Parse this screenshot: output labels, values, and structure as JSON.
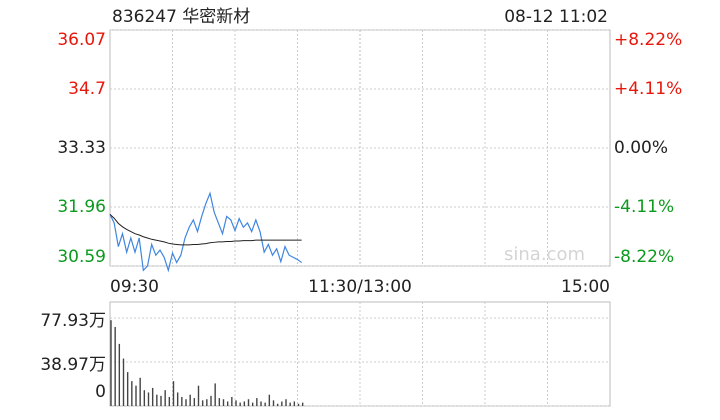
{
  "chart_data": [
    {
      "type": "line",
      "title": "836247 华密新材",
      "timestamp": "08-12 11:02",
      "watermark": "sina.com",
      "up_color": "#e8170c",
      "down_color": "#0b9a1e",
      "x": [
        0,
        2,
        4,
        6,
        8,
        10,
        12,
        14,
        16,
        18,
        20,
        22,
        24,
        26,
        28,
        30,
        32,
        34,
        36,
        38,
        40,
        42,
        44,
        46,
        48,
        50,
        52,
        54,
        56,
        58,
        60,
        62,
        64,
        66,
        68,
        70,
        72,
        74,
        76,
        78,
        80,
        82,
        84,
        86,
        88,
        90,
        92
      ],
      "xlim": [
        0,
        240
      ],
      "xticks": [
        {
          "value": 0,
          "label": "09:30"
        },
        {
          "value": 120,
          "label": "11:30/13:00"
        },
        {
          "value": 240,
          "label": "15:00"
        }
      ],
      "ylim": [
        30.59,
        36.07
      ],
      "yticks": [
        36.07,
        34.7,
        33.33,
        31.96,
        30.59
      ],
      "y2lim": [
        -8.22,
        8.22
      ],
      "y2ticks": [
        {
          "value": 8.22,
          "label": "+8.22%"
        },
        {
          "value": 4.11,
          "label": "+4.11%"
        },
        {
          "value": 0,
          "label": "0.00%"
        },
        {
          "value": -4.11,
          "label": "-4.11%"
        },
        {
          "value": -8.22,
          "label": "-8.22%"
        }
      ],
      "grid": true,
      "series": [
        {
          "name": "price",
          "color": "#3f86e0",
          "values": [
            31.79,
            31.59,
            31.04,
            31.34,
            30.91,
            31.24,
            30.91,
            31.24,
            30.49,
            30.59,
            31.09,
            30.84,
            30.96,
            30.79,
            30.49,
            30.89,
            30.67,
            30.84,
            31.24,
            31.49,
            31.66,
            31.39,
            31.74,
            32.04,
            32.28,
            31.84,
            31.59,
            31.34,
            31.74,
            31.66,
            31.41,
            31.69,
            31.49,
            31.59,
            31.39,
            31.66,
            31.39,
            30.91,
            31.09,
            30.84,
            30.99,
            30.69,
            31.04,
            30.84,
            30.79,
            30.74,
            30.67
          ]
        },
        {
          "name": "average",
          "color": "#222222",
          "values": [
            31.79,
            31.7,
            31.58,
            31.5,
            31.44,
            31.39,
            31.34,
            31.31,
            31.27,
            31.24,
            31.21,
            31.19,
            31.17,
            31.15,
            31.12,
            31.1,
            31.09,
            31.08,
            31.08,
            31.08,
            31.09,
            31.09,
            31.1,
            31.11,
            31.13,
            31.14,
            31.15,
            31.15,
            31.16,
            31.16,
            31.17,
            31.17,
            31.18,
            31.18,
            31.18,
            31.19,
            31.19,
            31.19,
            31.19,
            31.19,
            31.19,
            31.19,
            31.19,
            31.19,
            31.19,
            31.19,
            31.19
          ]
        }
      ]
    },
    {
      "type": "bar",
      "color": "#444444",
      "x": [
        0,
        2,
        4,
        6,
        8,
        10,
        12,
        14,
        16,
        18,
        20,
        22,
        24,
        26,
        28,
        30,
        32,
        34,
        36,
        38,
        40,
        42,
        44,
        46,
        48,
        50,
        52,
        54,
        56,
        58,
        60,
        62,
        64,
        66,
        68,
        70,
        72,
        74,
        76,
        78,
        80,
        82,
        84,
        86,
        88,
        90,
        92
      ],
      "xlim": [
        0,
        240
      ],
      "ylim": [
        0,
        77.93
      ],
      "yticks": [
        {
          "value": 77.93,
          "label": "77.93万"
        },
        {
          "value": 38.97,
          "label": "38.97万"
        },
        0
      ],
      "grid": true,
      "values": [
        76,
        70,
        55,
        42,
        30,
        22,
        18,
        25,
        14,
        12,
        16,
        10,
        9,
        14,
        8,
        22,
        12,
        8,
        6,
        10,
        7,
        18,
        5,
        6,
        9,
        20,
        7,
        6,
        4,
        8,
        5,
        3,
        4,
        6,
        3,
        7,
        4,
        3,
        10,
        5,
        2,
        4,
        6,
        3,
        4,
        2,
        3
      ]
    }
  ]
}
